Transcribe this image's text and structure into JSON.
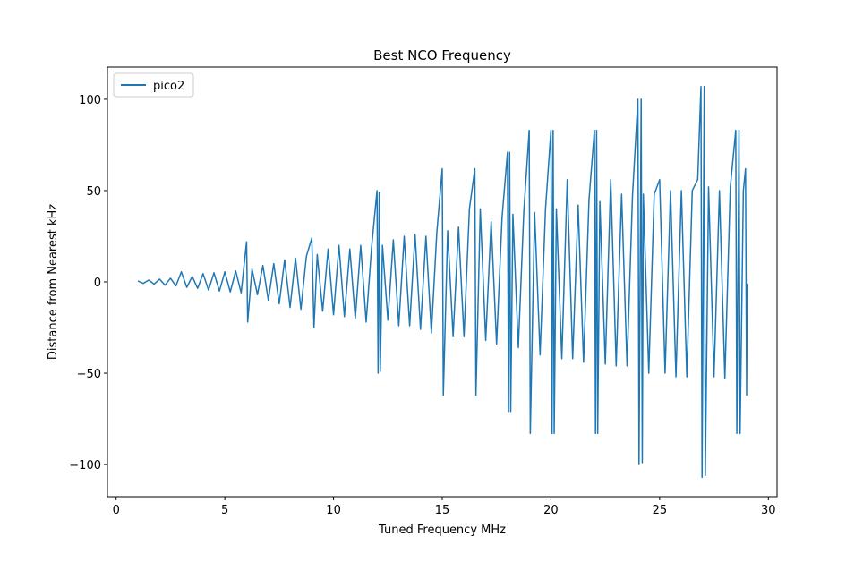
{
  "chart_data": {
    "type": "line",
    "title": "Best NCO Frequency",
    "xlabel": "Tuned Frequency MHz",
    "ylabel": "Distance from Nearest kHz",
    "xlim": [
      -0.4,
      30.4
    ],
    "ylim": [
      -117.6,
      117.6
    ],
    "xticks": [
      0,
      5,
      10,
      15,
      20,
      25,
      30
    ],
    "yticks": [
      {
        "value": -100,
        "label": "−100"
      },
      {
        "value": -50,
        "label": "−50"
      },
      0,
      50,
      100
    ],
    "legend": "upper left",
    "x": [
      1.0,
      1.25,
      1.5,
      1.75,
      2.0,
      2.25,
      2.5,
      2.75,
      3.0,
      3.25,
      3.5,
      3.75,
      4.0,
      4.25,
      4.5,
      4.75,
      5.0,
      5.25,
      5.5,
      5.75,
      6.0,
      6.05,
      6.25,
      6.5,
      6.75,
      7.0,
      7.25,
      7.5,
      7.75,
      8.0,
      8.25,
      8.5,
      8.75,
      9.0,
      9.1,
      9.25,
      9.5,
      9.75,
      10.0,
      10.25,
      10.5,
      10.75,
      11.0,
      11.25,
      11.5,
      11.75,
      12.0,
      12.05,
      12.1,
      12.15,
      12.25,
      12.5,
      12.75,
      13.0,
      13.25,
      13.5,
      13.75,
      14.0,
      14.25,
      14.5,
      14.75,
      15.0,
      15.05,
      15.25,
      15.5,
      15.75,
      16.0,
      16.25,
      16.5,
      16.55,
      16.75,
      17.0,
      17.25,
      17.5,
      17.75,
      18.0,
      18.05,
      18.1,
      18.15,
      18.25,
      18.5,
      18.75,
      19.0,
      19.05,
      19.25,
      19.5,
      19.75,
      20.0,
      20.05,
      20.1,
      20.15,
      20.25,
      20.5,
      20.75,
      21.0,
      21.25,
      21.5,
      21.75,
      22.0,
      22.05,
      22.1,
      22.15,
      22.25,
      22.5,
      22.75,
      23.0,
      23.25,
      23.5,
      23.75,
      24.0,
      24.05,
      24.15,
      24.2,
      24.25,
      24.5,
      24.75,
      25.0,
      25.25,
      25.5,
      25.75,
      26.0,
      26.25,
      26.5,
      26.75,
      26.9,
      26.95,
      27.05,
      27.1,
      27.25,
      27.5,
      27.75,
      28.0,
      28.25,
      28.5,
      28.55,
      28.65,
      28.7,
      28.85,
      28.95,
      29.0,
      29.02
    ],
    "series": [
      {
        "name": "pico2",
        "color": "#1f77b4",
        "values": [
          0.5,
          -0.8,
          1,
          -1.2,
          1.5,
          -1.8,
          2,
          -2.2,
          5.5,
          -3,
          3,
          -3.5,
          4.5,
          -4.5,
          5,
          -5,
          5.5,
          -5.5,
          6,
          -6,
          22,
          -22,
          7,
          -7,
          9,
          -10,
          10,
          -12,
          12,
          -14,
          13,
          -15,
          14,
          24,
          -25,
          15,
          -16,
          18,
          -18,
          20,
          -19,
          18,
          -20,
          20,
          -22,
          19,
          50,
          -50,
          49,
          -49,
          20,
          -21,
          23,
          -24,
          25,
          -24,
          26,
          -26,
          25,
          -28,
          27,
          62,
          -62,
          28,
          -30,
          30,
          -30,
          40,
          62,
          -62,
          40,
          -32,
          33,
          -34,
          35,
          71,
          -71,
          71,
          -71,
          37,
          -36,
          38,
          83,
          -83,
          38,
          -40,
          40,
          83,
          -83,
          83,
          -83,
          40,
          -42,
          56,
          -42,
          42,
          -44,
          45,
          83,
          -83,
          83,
          -83,
          44,
          -45,
          56,
          -46,
          48,
          -46,
          47,
          100,
          -100,
          100,
          -99,
          48,
          -50,
          48,
          56,
          -50,
          50,
          -52,
          50,
          -52,
          50,
          56,
          107,
          -107,
          107,
          -106,
          52,
          -52,
          50,
          -53,
          52,
          83,
          -83,
          83,
          -83,
          50,
          62,
          -62,
          -1
        ]
      }
    ]
  }
}
